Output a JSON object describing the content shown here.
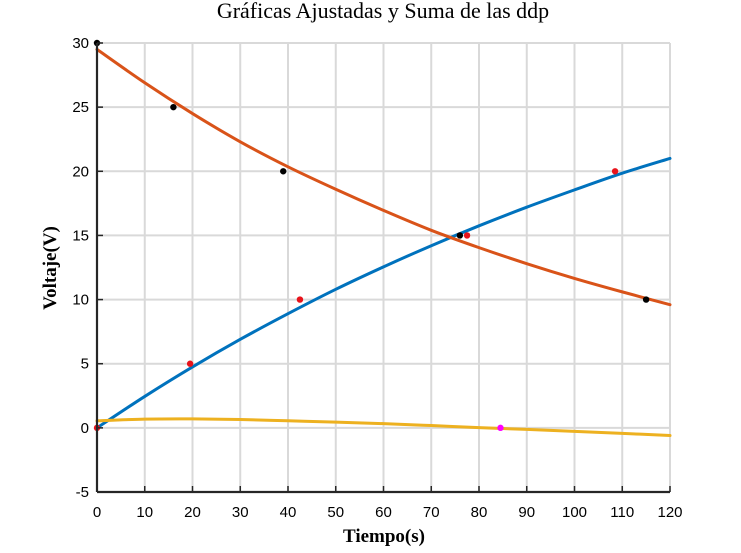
{
  "chart_data": {
    "type": "line",
    "title": "Gráficas Ajustadas y Suma de las ddp",
    "xlabel": "Tiempo(s)",
    "ylabel": "Voltaje(V)",
    "xlim": [
      0,
      120
    ],
    "ylim": [
      -5,
      30
    ],
    "xticks": [
      0,
      10,
      20,
      30,
      40,
      50,
      60,
      70,
      80,
      90,
      100,
      110,
      120
    ],
    "yticks": [
      -5,
      0,
      5,
      10,
      15,
      20,
      25,
      30
    ],
    "grid": true,
    "legend": "none",
    "series": [
      {
        "kind": "line",
        "color": "#0072bd",
        "x": [
          0,
          10,
          20,
          30,
          40,
          50,
          60,
          70,
          80,
          90,
          100,
          110,
          120
        ],
        "y": [
          0.0,
          2.45,
          4.75,
          6.9,
          8.9,
          10.8,
          12.55,
          14.2,
          15.75,
          17.2,
          18.55,
          19.85,
          21.0
        ]
      },
      {
        "kind": "line",
        "color": "#d95319",
        "x": [
          0,
          10,
          20,
          30,
          40,
          50,
          60,
          70,
          80,
          90,
          100,
          110,
          120
        ],
        "y": [
          29.5,
          26.9,
          24.5,
          22.3,
          20.35,
          18.6,
          16.95,
          15.4,
          14.05,
          12.8,
          11.65,
          10.6,
          9.6
        ]
      },
      {
        "kind": "line",
        "color": "#edb120",
        "x": [
          0,
          10,
          20,
          30,
          40,
          50,
          60,
          70,
          80,
          90,
          100,
          110,
          120
        ],
        "y": [
          0.55,
          0.68,
          0.7,
          0.65,
          0.55,
          0.45,
          0.33,
          0.18,
          0.02,
          -0.12,
          -0.27,
          -0.43,
          -0.6
        ]
      },
      {
        "kind": "points",
        "color": "#000000",
        "x": [
          0,
          16,
          39,
          76,
          115
        ],
        "y": [
          30,
          25,
          20,
          15,
          10
        ]
      },
      {
        "kind": "points",
        "color": "#e8131b",
        "x": [
          0,
          19.5,
          42.5,
          77.5,
          108.5
        ],
        "y": [
          0,
          5,
          10,
          15,
          20
        ]
      },
      {
        "kind": "points",
        "color": "#ff00ff",
        "x": [
          84.5
        ],
        "y": [
          0
        ]
      }
    ]
  }
}
